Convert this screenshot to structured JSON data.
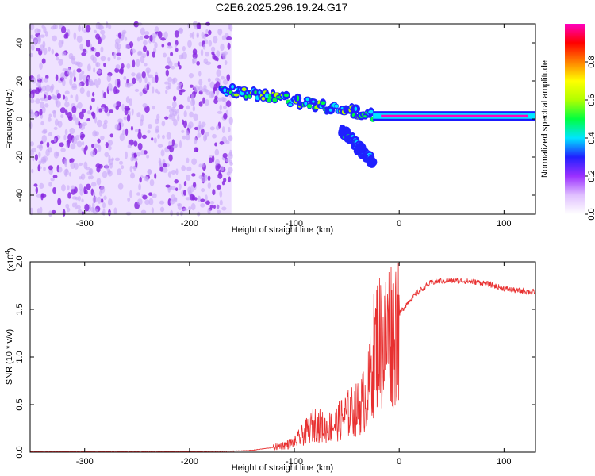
{
  "title": "C2E6.2025.296.19.24.G17",
  "chart_data": [
    {
      "type": "heatmap",
      "name": "spectrogram",
      "xlabel": "Height of straight line (km)",
      "ylabel": "Frequency (Hz)",
      "xlim": [
        -352,
        130
      ],
      "ylim": [
        -50,
        50
      ],
      "xticks": [
        -300,
        -200,
        -100,
        0,
        100
      ],
      "yticks": [
        -40,
        -20,
        0,
        20,
        40
      ],
      "xtick_labels": [
        "-300",
        "-200",
        "-100",
        "0",
        "100"
      ],
      "ytick_labels": [
        "-40",
        "-20",
        "0",
        "20",
        "40"
      ],
      "colorbar": {
        "label": "Normalized spectral amplitude",
        "range": [
          0,
          1
        ],
        "ticks": [
          0.0,
          0.2,
          0.4,
          0.6,
          0.8
        ],
        "tick_labels": [
          "0.0",
          "0.2",
          "0.4",
          "0.6",
          "0.8"
        ],
        "colors": [
          "#ffffff",
          "#e0c0ff",
          "#9b30ff",
          "#2020ff",
          "#00e5ff",
          "#00ff40",
          "#b0ff00",
          "#ffff00",
          "#ff8000",
          "#ff0000",
          "#ff00c0"
        ]
      },
      "regions": [
        {
          "desc": "noise",
          "x": [
            -352,
            -160
          ],
          "y": [
            -50,
            50
          ],
          "amplitude": 0.1
        },
        {
          "desc": "signal track",
          "x": [
            -170,
            -25
          ],
          "freq_start": 16,
          "freq_end": 2,
          "amplitude": 0.35
        },
        {
          "desc": "steady carrier",
          "x": [
            -25,
            130
          ],
          "freq": 1.5,
          "amplitude": 0.95
        },
        {
          "desc": "side branch",
          "x": [
            -55,
            -25
          ],
          "freq_start": -5,
          "freq_end": -23,
          "amplitude": 0.25
        }
      ]
    },
    {
      "type": "line",
      "name": "snr",
      "xlabel": "Height of straight line (km)",
      "ylabel": "SNR (10 * v/v)",
      "y_multiplier": "(x10",
      "y_multiplier_exp": "4",
      "xlim": [
        -352,
        130
      ],
      "ylim": [
        0,
        2.0
      ],
      "xticks": [
        -300,
        -200,
        -100,
        0,
        100
      ],
      "yticks": [
        0.0,
        0.5,
        1.0,
        1.5,
        2.0
      ],
      "xtick_labels": [
        "-300",
        "-200",
        "-100",
        "0",
        "100"
      ],
      "ytick_labels": [
        "0.0",
        "0.5",
        "1.0",
        "1.5",
        "2.0"
      ],
      "color": "#e83030",
      "x": [
        -352,
        -300,
        -250,
        -200,
        -160,
        -140,
        -120,
        -100,
        -90,
        -80,
        -70,
        -60,
        -50,
        -40,
        -30,
        -25,
        -20,
        -15,
        -10,
        -5,
        0,
        10,
        20,
        30,
        40,
        60,
        80,
        90,
        100,
        110,
        130
      ],
      "y": [
        0.005,
        0.005,
        0.005,
        0.006,
        0.01,
        0.02,
        0.05,
        0.1,
        0.2,
        0.3,
        0.25,
        0.3,
        0.4,
        0.45,
        0.6,
        1.0,
        1.2,
        1.1,
        1.3,
        1.25,
        1.45,
        1.6,
        1.7,
        1.78,
        1.8,
        1.8,
        1.78,
        1.75,
        1.72,
        1.7,
        1.68
      ]
    }
  ]
}
